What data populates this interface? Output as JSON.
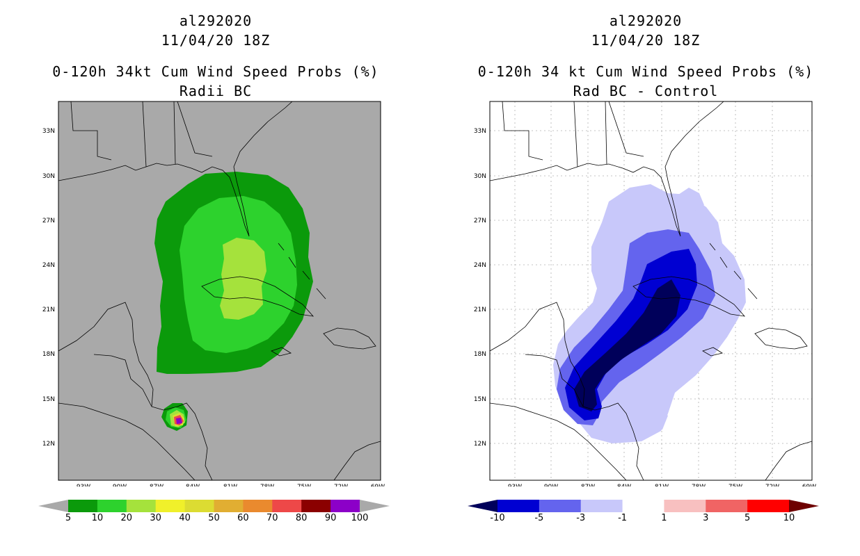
{
  "left_panel": {
    "storm_id": "al292020",
    "datetime": "11/04/20 18Z",
    "title": "0-120h 34kt Cum Wind Speed Probs (%)",
    "subtitle": "Radii BC",
    "colorbar": {
      "labels": [
        "5",
        "10",
        "20",
        "30",
        "40",
        "50",
        "60",
        "70",
        "80",
        "90",
        "100"
      ],
      "colors": [
        "#0b9a0b",
        "#2dd22d",
        "#a5e23c",
        "#f0f02a",
        "#dcdc32",
        "#e1ae32",
        "#ea8a2e",
        "#ee4848",
        "#8b0000",
        "#8c00c8"
      ],
      "under_color": "#a9a9a9",
      "over_color": "#a9a9a9"
    }
  },
  "right_panel": {
    "storm_id": "al292020",
    "datetime": "11/04/20 18Z",
    "title": "0-120h 34 kt Cum Wind Speed Probs (%)",
    "subtitle": "Rad BC - Control",
    "colorbar": {
      "labels": [
        "-10",
        "-5",
        "-3",
        "-1",
        "1",
        "3",
        "5",
        "10"
      ],
      "colors": [
        "#0000d2",
        "#6464ee",
        "#c8c8fa",
        "#ffffff",
        "#f8c0c0",
        "#f06464",
        "#ff0000"
      ],
      "under_color": "#00005a",
      "over_color": "#6e0000"
    }
  },
  "map": {
    "lat_labels": [
      "33N",
      "30N",
      "27N",
      "24N",
      "21N",
      "18N",
      "15N",
      "12N"
    ],
    "lon_labels": [
      "93W",
      "90W",
      "87W",
      "84W",
      "81W",
      "78W",
      "75W",
      "72W",
      "69W"
    ],
    "land_background_left": "#a9a9a9",
    "background_right": "#ffffff"
  }
}
